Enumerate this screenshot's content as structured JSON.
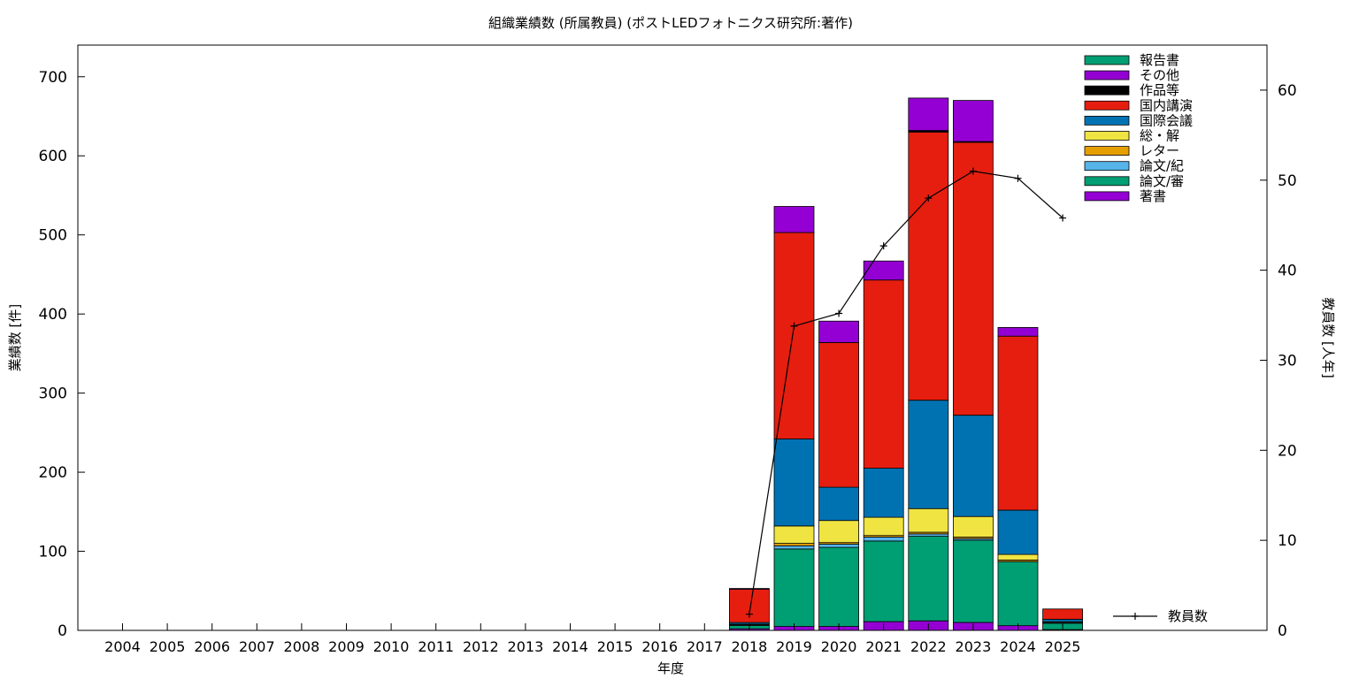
{
  "chart_data": {
    "type": "bar",
    "title": "組織業績数 (所属教員) (ポストLEDフォトニクス研究所:著作)",
    "xlabel": "年度",
    "ylabel": "業績数 [件]",
    "y2label": "教員数 [人年]",
    "ylim": [
      0,
      740
    ],
    "y2lim": [
      0,
      65
    ],
    "yticks": [
      0,
      100,
      200,
      300,
      400,
      500,
      600,
      700
    ],
    "y2ticks": [
      0,
      10,
      20,
      30,
      40,
      50,
      60
    ],
    "grid": false,
    "legend_position": "top-right",
    "categories": [
      "2004",
      "2005",
      "2006",
      "2007",
      "2008",
      "2009",
      "2010",
      "2011",
      "2012",
      "2013",
      "2014",
      "2015",
      "2016",
      "2017",
      "2018",
      "2019",
      "2020",
      "2021",
      "2022",
      "2023",
      "2024",
      "2025"
    ],
    "series": [
      {
        "name": "著書",
        "color": "#9400d3",
        "values": [
          0,
          0,
          0,
          0,
          0,
          0,
          0,
          0,
          0,
          0,
          0,
          0,
          0,
          0,
          2,
          5,
          5,
          11,
          12,
          10,
          6,
          1
        ]
      },
      {
        "name": "論文/審",
        "color": "#009e73",
        "values": [
          0,
          0,
          0,
          0,
          0,
          0,
          0,
          0,
          0,
          0,
          0,
          0,
          0,
          0,
          4,
          98,
          100,
          102,
          107,
          104,
          81,
          8
        ]
      },
      {
        "name": "論文/紀",
        "color": "#56b4e9",
        "values": [
          0,
          0,
          0,
          0,
          0,
          0,
          0,
          0,
          0,
          0,
          0,
          0,
          0,
          0,
          1,
          4,
          4,
          5,
          3,
          2,
          0,
          1
        ]
      },
      {
        "name": "レター",
        "color": "#e69f00",
        "values": [
          0,
          0,
          0,
          0,
          0,
          0,
          0,
          0,
          0,
          0,
          0,
          0,
          0,
          0,
          0,
          3,
          2,
          2,
          2,
          2,
          2,
          0
        ]
      },
      {
        "name": "総・解",
        "color": "#f0e442",
        "values": [
          0,
          0,
          0,
          0,
          0,
          0,
          0,
          0,
          0,
          0,
          0,
          0,
          0,
          0,
          1,
          22,
          28,
          23,
          30,
          26,
          7,
          1
        ]
      },
      {
        "name": "国際会議",
        "color": "#0072b2",
        "values": [
          0,
          0,
          0,
          0,
          0,
          0,
          0,
          0,
          0,
          0,
          0,
          0,
          0,
          0,
          2,
          110,
          42,
          62,
          137,
          128,
          56,
          3
        ]
      },
      {
        "name": "国内講演",
        "color": "#e51e10",
        "values": [
          0,
          0,
          0,
          0,
          0,
          0,
          0,
          0,
          0,
          0,
          0,
          0,
          0,
          0,
          42,
          261,
          183,
          238,
          339,
          345,
          220,
          13
        ]
      },
      {
        "name": "作品等",
        "color": "#000000",
        "values": [
          0,
          0,
          0,
          0,
          0,
          0,
          0,
          0,
          0,
          0,
          0,
          0,
          0,
          0,
          0,
          0,
          0,
          0,
          2,
          1,
          0,
          0
        ]
      },
      {
        "name": "その他",
        "color": "#9400d3",
        "values": [
          0,
          0,
          0,
          0,
          0,
          0,
          0,
          0,
          0,
          0,
          0,
          0,
          0,
          0,
          1,
          33,
          27,
          24,
          41,
          52,
          11,
          0
        ]
      },
      {
        "name": "報告書",
        "color": "#009e73",
        "values": [
          0,
          0,
          0,
          0,
          0,
          0,
          0,
          0,
          0,
          0,
          0,
          0,
          0,
          0,
          0,
          0,
          0,
          0,
          0,
          0,
          0,
          0
        ]
      }
    ],
    "line_series": {
      "name": "教員数",
      "axis": "right",
      "color": "#000000",
      "categories": [
        "2018",
        "2019",
        "2020",
        "2021",
        "2022",
        "2023",
        "2024",
        "2025"
      ],
      "values": [
        1.8,
        33.8,
        35.2,
        42.7,
        48.0,
        51.0,
        50.2,
        45.8
      ]
    }
  }
}
